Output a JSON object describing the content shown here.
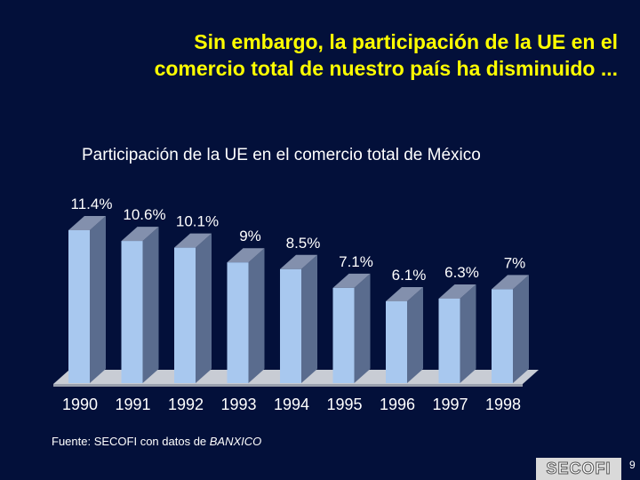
{
  "slide": {
    "title_line1": "Sin embargo, la participación de la UE en el",
    "title_line2": "comercio total de nuestro país ha disminuido ...",
    "source_prefix": "Fuente: SECOFI con datos de ",
    "source_italic": "BANXICO",
    "logo_text": "SECOFI",
    "page_number": "9"
  },
  "colors": {
    "background": "#03103a",
    "title": "#ffff00",
    "bar_front": "#a8c8ef",
    "bar_side": "#5a6c8e",
    "bar_top": "#8390ad",
    "floor": "#c8ccd4"
  },
  "chart_data": {
    "type": "bar",
    "title": "Participación de la UE en el comercio total de México",
    "categories": [
      "1990",
      "1991",
      "1992",
      "1993",
      "1994",
      "1995",
      "1996",
      "1997",
      "1998"
    ],
    "values": [
      11.4,
      10.6,
      10.1,
      9,
      8.5,
      7.1,
      6.1,
      6.3,
      7
    ],
    "value_labels": [
      "11.4%",
      "10.6%",
      "10.1%",
      "9%",
      "8.5%",
      "7.1%",
      "6.1%",
      "6.3%",
      "7%"
    ],
    "unit": "%",
    "ylim": [
      0,
      12
    ],
    "grid": false,
    "legend": "none",
    "style": "3d-columns"
  }
}
